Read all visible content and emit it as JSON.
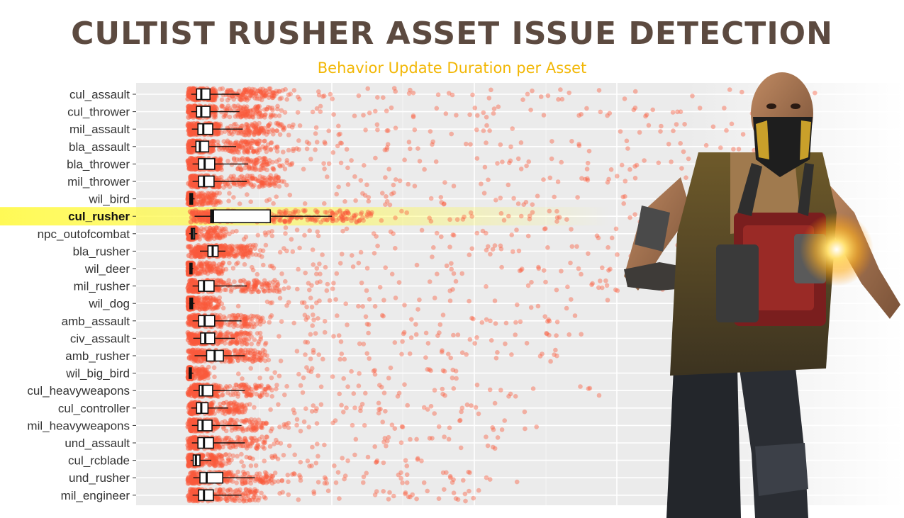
{
  "title": "CULTIST RUSHER ASSET ISSUE DETECTION",
  "subtitle": "Behavior Update Duration per Asset",
  "colors": {
    "points": "#fa5a3c",
    "highlight_band": "#fff94d",
    "title": "#5c4a40",
    "subtitle": "#f2b705",
    "panel": "#ebebeb"
  },
  "chart_data": {
    "type": "box-jitter",
    "orientation": "horizontal",
    "title": "CULTIST RUSHER ASSET ISSUE DETECTION",
    "subtitle": "Behavior Update Duration per Asset",
    "xlabel": "",
    "ylabel": "",
    "x_range": [
      0,
      1
    ],
    "grid": true,
    "legend": "none",
    "highlighted": "cul_rusher",
    "x_tick_labels": [],
    "categories": [
      "cul_assault",
      "cul_thrower",
      "mil_assault",
      "bla_assault",
      "bla_thrower",
      "mil_thrower",
      "wil_bird",
      "cul_rusher",
      "npc_outofcombat",
      "bla_rusher",
      "wil_deer",
      "mil_rusher",
      "wil_dog",
      "amb_assault",
      "civ_assault",
      "amb_rusher",
      "wil_big_bird",
      "cul_heavyweapons",
      "cul_controller",
      "mil_heavyweapons",
      "und_assault",
      "cul_rcblade",
      "und_rusher",
      "mil_engineer"
    ],
    "boxes": [
      {
        "name": "cul_assault",
        "q1": 0.013,
        "median": 0.02,
        "q3": 0.033,
        "whisker_lo": 0.005,
        "whisker_hi": 0.077,
        "spread": 1.0
      },
      {
        "name": "cul_thrower",
        "q1": 0.013,
        "median": 0.02,
        "q3": 0.033,
        "whisker_lo": 0.005,
        "whisker_hi": 0.077,
        "spread": 0.9
      },
      {
        "name": "mil_assault",
        "q1": 0.015,
        "median": 0.023,
        "q3": 0.037,
        "whisker_lo": 0.006,
        "whisker_hi": 0.082,
        "spread": 0.85
      },
      {
        "name": "bla_assault",
        "q1": 0.012,
        "median": 0.018,
        "q3": 0.031,
        "whisker_lo": 0.005,
        "whisker_hi": 0.072,
        "spread": 0.85
      },
      {
        "name": "bla_thrower",
        "q1": 0.016,
        "median": 0.025,
        "q3": 0.04,
        "whisker_lo": 0.007,
        "whisker_hi": 0.09,
        "spread": 0.8
      },
      {
        "name": "mil_thrower",
        "q1": 0.016,
        "median": 0.024,
        "q3": 0.039,
        "whisker_lo": 0.007,
        "whisker_hi": 0.088,
        "spread": 0.8
      },
      {
        "name": "wil_bird",
        "q1": 0.003,
        "median": 0.005,
        "q3": 0.007,
        "whisker_lo": 0.002,
        "whisker_hi": 0.01,
        "spread": 0.7
      },
      {
        "name": "cul_rusher",
        "q1": 0.034,
        "median": 0.037,
        "q3": 0.123,
        "whisker_lo": 0.01,
        "whisker_hi": 0.215,
        "spread": 0.7
      },
      {
        "name": "npc_outofcombat",
        "q1": 0.005,
        "median": 0.007,
        "q3": 0.01,
        "whisker_lo": 0.002,
        "whisker_hi": 0.014,
        "spread": 0.75
      },
      {
        "name": "bla_rusher",
        "q1": 0.03,
        "median": 0.037,
        "q3": 0.045,
        "whisker_lo": 0.018,
        "whisker_hi": 0.056,
        "spread": 0.8
      },
      {
        "name": "wil_deer",
        "q1": 0.003,
        "median": 0.004,
        "q3": 0.006,
        "whisker_lo": 0.002,
        "whisker_hi": 0.008,
        "spread": 0.75
      },
      {
        "name": "mil_rusher",
        "q1": 0.016,
        "median": 0.024,
        "q3": 0.039,
        "whisker_lo": 0.007,
        "whisker_hi": 0.088,
        "spread": 0.8
      },
      {
        "name": "wil_dog",
        "q1": 0.003,
        "median": 0.005,
        "q3": 0.007,
        "whisker_lo": 0.002,
        "whisker_hi": 0.01,
        "spread": 0.65
      },
      {
        "name": "amb_assault",
        "q1": 0.016,
        "median": 0.025,
        "q3": 0.04,
        "whisker_lo": 0.007,
        "whisker_hi": 0.08,
        "spread": 0.55
      },
      {
        "name": "civ_assault",
        "q1": 0.019,
        "median": 0.026,
        "q3": 0.04,
        "whisker_lo": 0.008,
        "whisker_hi": 0.07,
        "spread": 0.55
      },
      {
        "name": "amb_rusher",
        "q1": 0.028,
        "median": 0.04,
        "q3": 0.053,
        "whisker_lo": 0.01,
        "whisker_hi": 0.085,
        "spread": 0.5
      },
      {
        "name": "wil_big_bird",
        "q1": 0.002,
        "median": 0.003,
        "q3": 0.005,
        "whisker_lo": 0.001,
        "whisker_hi": 0.008,
        "spread": 0.4
      },
      {
        "name": "cul_heavyweapons",
        "q1": 0.017,
        "median": 0.022,
        "q3": 0.037,
        "whisker_lo": 0.008,
        "whisker_hi": 0.085,
        "spread": 0.55
      },
      {
        "name": "cul_controller",
        "q1": 0.013,
        "median": 0.02,
        "q3": 0.03,
        "whisker_lo": 0.005,
        "whisker_hi": 0.06,
        "spread": 0.45
      },
      {
        "name": "mil_heavyweapons",
        "q1": 0.015,
        "median": 0.022,
        "q3": 0.036,
        "whisker_lo": 0.006,
        "whisker_hi": 0.08,
        "spread": 0.45
      },
      {
        "name": "und_assault",
        "q1": 0.015,
        "median": 0.024,
        "q3": 0.038,
        "whisker_lo": 0.006,
        "whisker_hi": 0.085,
        "spread": 0.4
      },
      {
        "name": "cul_rcblade",
        "q1": 0.008,
        "median": 0.012,
        "q3": 0.018,
        "whisker_lo": 0.004,
        "whisker_hi": 0.035,
        "spread": 0.35
      },
      {
        "name": "und_rusher",
        "q1": 0.018,
        "median": 0.028,
        "q3": 0.052,
        "whisker_lo": 0.008,
        "whisker_hi": 0.1,
        "spread": 0.4
      },
      {
        "name": "mil_engineer",
        "q1": 0.016,
        "median": 0.024,
        "q3": 0.038,
        "whisker_lo": 0.007,
        "whisker_hi": 0.08,
        "spread": 0.35
      }
    ]
  }
}
